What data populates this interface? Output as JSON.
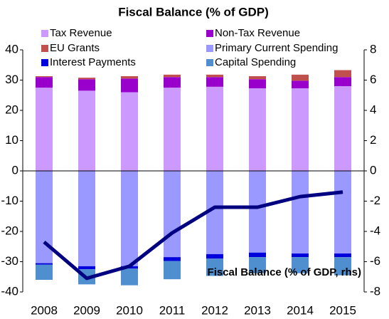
{
  "chart_data": {
    "type": "bar",
    "title": "Fiscal Balance (% of GDP)",
    "categories": [
      "2008",
      "2009",
      "2010",
      "2011",
      "2012",
      "2013",
      "2014",
      "2015"
    ],
    "series": [
      {
        "name": "Tax Revenue",
        "color": "#cc99ff",
        "values": [
          27.5,
          26.5,
          26,
          27.5,
          27.8,
          27.3,
          27.3,
          28
        ]
      },
      {
        "name": "Non-Tax Revenue",
        "color": "#9900cc",
        "values": [
          3.5,
          3.8,
          4.5,
          3.5,
          3.2,
          3,
          2.5,
          3
        ]
      },
      {
        "name": "EU Grants",
        "color": "#c0504d",
        "values": [
          0.3,
          0.5,
          0.8,
          0.8,
          0.8,
          1,
          2,
          2.3
        ]
      },
      {
        "name": "Primary Current Spending",
        "color": "#9999ff",
        "values": [
          -30.5,
          -31.5,
          -31.5,
          -28.5,
          -27.5,
          -27,
          -27.3,
          -27.3
        ]
      },
      {
        "name": "Interest Payments",
        "color": "#0000dd",
        "values": [
          -0.5,
          -1,
          -0.8,
          -1.3,
          -1.5,
          -1.5,
          -1.2,
          -1.2
        ]
      },
      {
        "name": "Capital Spending",
        "color": "#4f8fd0",
        "values": [
          -5,
          -5,
          -5.5,
          -6,
          -5.7,
          -5.3,
          -5.3,
          -6
        ]
      },
      {
        "name": "Fiscal Balance (% of GDP, rhs)",
        "color": "#000080",
        "type": "line",
        "axis": "y2",
        "values": [
          -4.7,
          -7.1,
          -6.3,
          -4.1,
          -2.4,
          -2.4,
          -1.7,
          -1.4
        ]
      }
    ],
    "ylim": [
      -40,
      40
    ],
    "yticks": [
      -40,
      -30,
      -20,
      -10,
      0,
      10,
      20,
      30,
      40
    ],
    "y2lim": [
      -8,
      8
    ],
    "y2ticks": [
      -8,
      -6,
      -4,
      -2,
      0,
      2,
      4,
      6,
      8
    ]
  }
}
